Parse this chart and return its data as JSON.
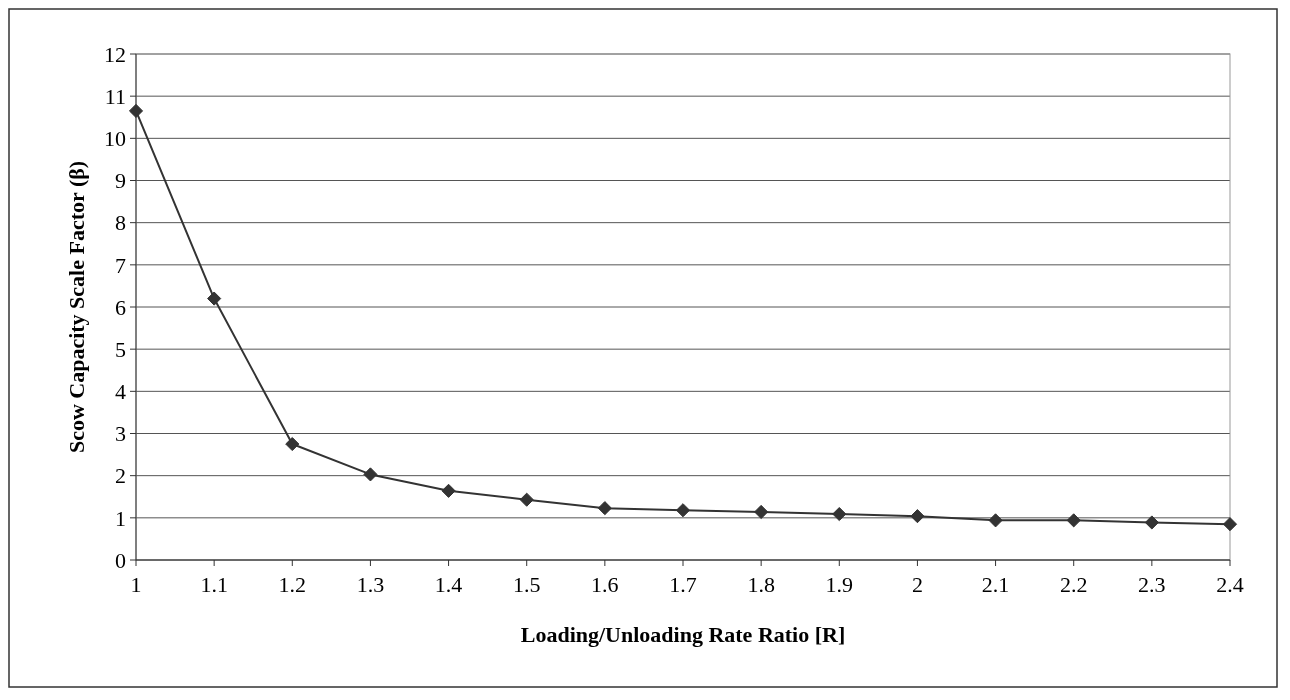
{
  "chart_data": {
    "type": "line",
    "xlabel": "Loading/Unloading Rate Ratio [R]",
    "ylabel": "Scow Capacity Scale Factor (β)",
    "categories": [
      "1",
      "1.1",
      "1.2",
      "1.3",
      "1.4",
      "1.5",
      "1.6",
      "1.7",
      "1.8",
      "1.9",
      "2",
      "2.1",
      "2.2",
      "2.3",
      "2.4"
    ],
    "series": [
      {
        "color": "#333333",
        "values": [
          10.65,
          6.2,
          2.75,
          2.03,
          1.64,
          1.43,
          1.23,
          1.18,
          1.14,
          1.09,
          1.04,
          0.94,
          0.94,
          0.89,
          0.85
        ]
      }
    ],
    "ylim": [
      0,
      12
    ],
    "yticks": [
      0,
      1,
      2,
      3,
      4,
      5,
      6,
      7,
      8,
      9,
      10,
      11,
      12
    ],
    "grid": "y",
    "marker": "diamond",
    "line_style": "solid"
  }
}
